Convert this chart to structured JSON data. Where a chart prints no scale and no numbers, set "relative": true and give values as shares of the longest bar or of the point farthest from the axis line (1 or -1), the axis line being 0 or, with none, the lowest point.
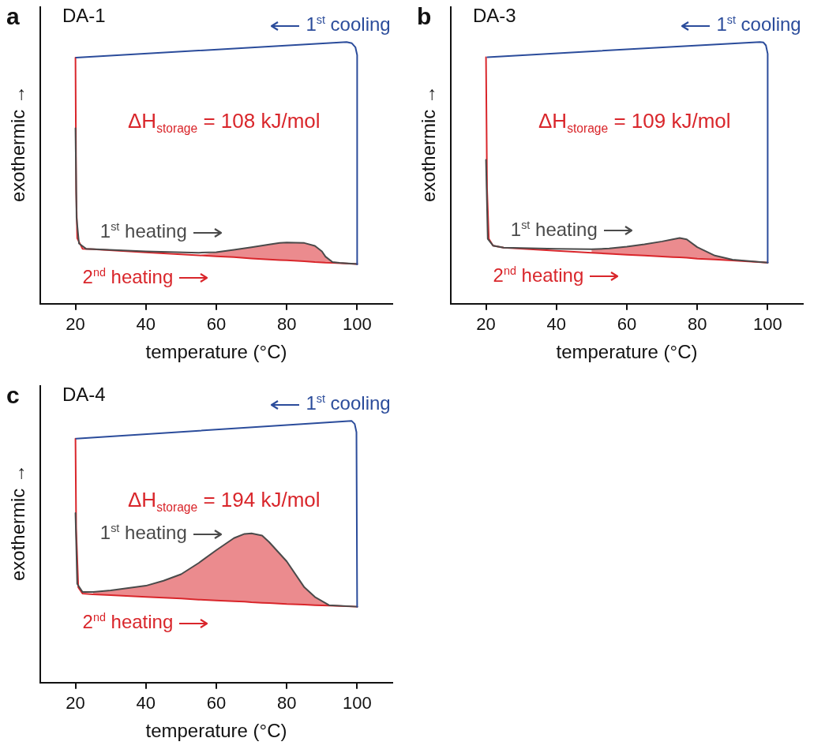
{
  "chart_data": [
    {
      "type": "line",
      "title": "DA-1",
      "xlabel": "temperature (°C)",
      "ylabel": "exothermic →",
      "relative": true,
      "xlim": [
        10,
        110
      ],
      "xticks": [
        20,
        40,
        60,
        80,
        100
      ],
      "grid": false,
      "legend": "bottom left",
      "annotations": [
        "a",
        "ΔH$_{storage}$ = 108 kJ/mol"
      ],
      "series": [
        {
          "name": "1$^{st}$ cooling",
          "color": "#2b4c9b",
          "x": [
            100,
            100,
            99.5,
            98.5,
            97,
            20.2
          ],
          "values": [
            0.15,
            0.95,
            0.98,
            0.995,
            1.0,
            0.94
          ]
        },
        {
          "name": "1$^{st}$ heating",
          "color": "#4a4a4a",
          "x": [
            20,
            20.3,
            21,
            23,
            40,
            55,
            60,
            65,
            70,
            75,
            78,
            80,
            85,
            88,
            90,
            91,
            93,
            95,
            100
          ],
          "values": [
            0.67,
            0.33,
            0.23,
            0.21,
            0.2,
            0.195,
            0.197,
            0.206,
            0.216,
            0.226,
            0.232,
            0.234,
            0.232,
            0.221,
            0.2,
            0.18,
            0.159,
            0.156,
            0.152
          ]
        },
        {
          "name": "2$^{nd}$ heating",
          "color": "#d9262b",
          "x": [
            20,
            20.2,
            20.5,
            22,
            25,
            40,
            55,
            60,
            65,
            70,
            75,
            78,
            80,
            85,
            88,
            90,
            91,
            93,
            100
          ],
          "values": [
            0.94,
            0.43,
            0.25,
            0.21,
            0.208,
            0.196,
            0.185,
            0.181,
            0.178,
            0.173,
            0.169,
            0.167,
            0.166,
            0.162,
            0.159,
            0.158,
            0.157,
            0.156,
            0.152
          ],
          "lower": [
            null,
            null,
            null,
            null,
            null,
            null,
            0.185,
            0.181,
            0.178,
            0.173,
            0.169,
            0.167,
            0.166,
            0.162,
            0.159,
            0.158,
            0.157,
            0.156,
            null
          ],
          "upper": [
            null,
            null,
            null,
            null,
            null,
            null,
            0.185,
            0.197,
            0.206,
            0.216,
            0.226,
            0.232,
            0.234,
            0.232,
            0.221,
            0.2,
            0.18,
            0.159,
            null
          ]
        }
      ]
    },
    {
      "type": "line",
      "title": "DA-3",
      "xlabel": "temperature (°C)",
      "ylabel": "exothermic →",
      "relative": true,
      "xlim": [
        10,
        110
      ],
      "xticks": [
        20,
        40,
        60,
        80,
        100
      ],
      "grid": false,
      "legend": "bottom left",
      "annotations": [
        "b",
        "ΔH$_{storage}$ = 109 kJ/mol"
      ],
      "series": [
        {
          "name": "1$^{st}$ cooling",
          "color": "#2b4c9b",
          "x": [
            100,
            100,
            99.5,
            98.8,
            97.8,
            20.4
          ],
          "values": [
            0.157,
            0.955,
            0.987,
            0.998,
            1.0,
            0.942
          ]
        },
        {
          "name": "1$^{st}$ heating",
          "color": "#4a4a4a",
          "x": [
            20,
            20.5,
            22,
            25,
            40,
            50,
            55,
            60,
            65,
            70,
            73,
            75,
            77,
            80,
            85,
            90,
            100
          ],
          "values": [
            0.55,
            0.248,
            0.222,
            0.214,
            0.21,
            0.208,
            0.211,
            0.218,
            0.227,
            0.238,
            0.246,
            0.251,
            0.246,
            0.216,
            0.184,
            0.168,
            0.157
          ]
        },
        {
          "name": "2$^{nd}$ heating",
          "color": "#d9262b",
          "x": [
            20,
            20.3,
            20.8,
            22,
            25,
            40,
            50,
            55,
            60,
            65,
            70,
            73,
            75,
            77,
            80,
            85,
            90,
            100
          ],
          "values": [
            0.942,
            0.441,
            0.248,
            0.222,
            0.214,
            0.202,
            0.195,
            0.191,
            0.187,
            0.184,
            0.18,
            0.178,
            0.177,
            0.176,
            0.172,
            0.169,
            0.165,
            0.157
          ],
          "lower": [
            null,
            null,
            null,
            null,
            null,
            null,
            0.195,
            0.191,
            0.187,
            0.184,
            0.18,
            0.178,
            0.177,
            0.176,
            0.172,
            0.169,
            0.165,
            null
          ],
          "upper": [
            null,
            null,
            null,
            null,
            null,
            null,
            0.208,
            0.211,
            0.218,
            0.227,
            0.238,
            0.246,
            0.251,
            0.246,
            0.216,
            0.184,
            0.168,
            null
          ]
        }
      ]
    },
    {
      "type": "line",
      "title": "DA-4",
      "xlabel": "temperature (°C)",
      "ylabel": "exothermic →",
      "relative": true,
      "xlim": [
        10,
        110
      ],
      "xticks": [
        20,
        40,
        60,
        80,
        100
      ],
      "grid": false,
      "legend": "bottom left",
      "annotations": [
        "c",
        "ΔH$_{storage}$ = 194 kJ/mol"
      ],
      "series": [
        {
          "name": "1$^{st}$ cooling",
          "color": "#2b4c9b",
          "x": [
            100,
            99.8,
            99.3,
            98.4,
            20.2
          ],
          "values": [
            0.29,
            0.957,
            0.988,
            1.0,
            0.932
          ]
        },
        {
          "name": "1$^{st}$ heating",
          "color": "#4a4a4a",
          "x": [
            20,
            20.5,
            22,
            25,
            30,
            40,
            45,
            50,
            55,
            60,
            65,
            68,
            70,
            73,
            75,
            80,
            85,
            88,
            92,
            100
          ],
          "values": [
            0.648,
            0.377,
            0.346,
            0.346,
            0.352,
            0.37,
            0.389,
            0.414,
            0.457,
            0.506,
            0.552,
            0.568,
            0.57,
            0.562,
            0.537,
            0.463,
            0.364,
            0.327,
            0.296,
            0.29
          ]
        },
        {
          "name": "2$^{nd}$ heating",
          "color": "#d9262b",
          "x": [
            20,
            20.2,
            20.8,
            22,
            25,
            30,
            40,
            45,
            50,
            55,
            60,
            65,
            68,
            70,
            73,
            75,
            80,
            85,
            88,
            92,
            100
          ],
          "values": [
            0.932,
            0.586,
            0.364,
            0.34,
            0.337,
            0.334,
            0.327,
            0.324,
            0.321,
            0.317,
            0.314,
            0.311,
            0.309,
            0.307,
            0.305,
            0.304,
            0.3,
            0.298,
            0.296,
            0.294,
            0.29
          ],
          "lower": [
            null,
            null,
            null,
            null,
            0.337,
            0.334,
            0.327,
            0.324,
            0.321,
            0.317,
            0.314,
            0.311,
            0.309,
            0.307,
            0.305,
            0.304,
            0.3,
            0.298,
            0.296,
            0.294,
            null
          ],
          "upper": [
            null,
            null,
            null,
            null,
            0.346,
            0.352,
            0.37,
            0.389,
            0.414,
            0.457,
            0.506,
            0.552,
            0.568,
            0.57,
            0.562,
            0.537,
            0.463,
            0.364,
            0.327,
            0.296,
            null
          ]
        }
      ]
    }
  ]
}
